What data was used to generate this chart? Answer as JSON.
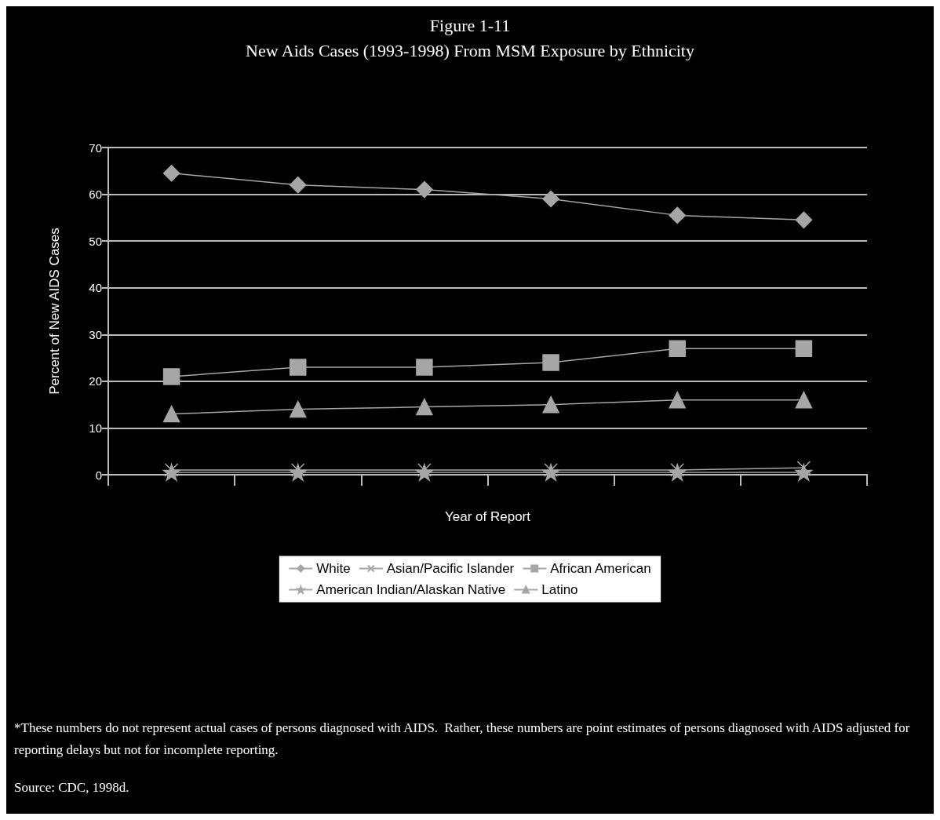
{
  "chart_data": {
    "type": "line",
    "title": "Figure 1-11",
    "subtitle": "New Aids Cases (1993-1998) From MSM Exposure by Ethnicity",
    "xlabel": "Year of Report",
    "ylabel": "Percent of New AIDS Cases",
    "categories": [
      null,
      null,
      null,
      null,
      null,
      null
    ],
    "series": [
      {
        "name": "White",
        "color": "#a6a6a6",
        "marker": "diamond",
        "values": [
          64.5,
          62,
          61,
          59,
          55.5,
          54.5
        ]
      },
      {
        "name": "African American",
        "color": "#a6a6a6",
        "marker": "square",
        "values": [
          21,
          23,
          23,
          24,
          27,
          27
        ]
      },
      {
        "name": "Latino",
        "color": "#a6a6a6",
        "marker": "triangle",
        "values": [
          13,
          14,
          14.5,
          15,
          16,
          16
        ]
      },
      {
        "name": "Asian/Pacific Islander",
        "color": "#a6a6a6",
        "marker": "cross",
        "values": [
          1,
          1,
          1,
          1,
          1,
          1.5
        ]
      },
      {
        "name": "American Indian/Alaskan Native",
        "color": "#a6a6a6",
        "marker": "star",
        "values": [
          0.5,
          0.5,
          0.5,
          0.5,
          0.5,
          0.5
        ]
      }
    ],
    "ylim": [
      0,
      70
    ],
    "yticks": [
      0,
      10,
      20,
      30,
      40,
      50,
      60,
      70
    ],
    "grid": "y",
    "legend": "bottom",
    "tick_labels": "y",
    "annotations": [
      "*These numbers do not represent actual cases of persons diagnosed with AIDS.  Rather, these numbers are point estimates of persons diagnosed with AIDS adjusted for reporting delays but not for incomplete reporting.",
      "Source: CDC, 1998d."
    ]
  }
}
